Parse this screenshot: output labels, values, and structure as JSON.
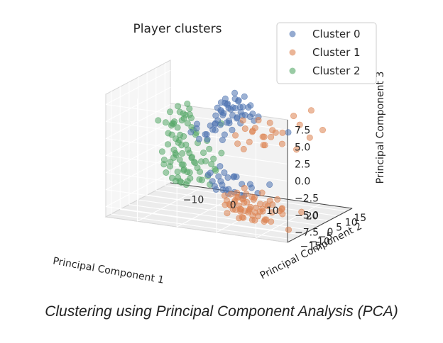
{
  "caption": "Clustering using Principal Component Analysis (PCA)",
  "chart_data": {
    "type": "scatter",
    "projection": "3d",
    "title": "Player clusters",
    "xlabel": "Principal Component 1",
    "ylabel": "Principal Component 2",
    "zlabel": "Principal Component 3",
    "legend_position": "top-right",
    "grid": true,
    "xlim": [
      -18,
      28
    ],
    "ylim": [
      -18,
      18
    ],
    "zlim": [
      -9,
      9
    ],
    "x_ticks": [
      "−10",
      "0",
      "10",
      "20"
    ],
    "y_ticks": [
      "−15",
      "−10",
      "−5",
      "0",
      "5",
      "10",
      "15"
    ],
    "z_ticks": [
      "−7.5",
      "−5.0",
      "−2.5",
      "0.0",
      "2.5",
      "5.0",
      "7.5"
    ],
    "series": [
      {
        "name": "Cluster 0",
        "color": "#4c72b0",
        "points": [
          [
            4,
            -2,
            6
          ],
          [
            5,
            -1,
            7
          ],
          [
            6,
            0,
            6.5
          ],
          [
            3,
            -3,
            5.5
          ],
          [
            7,
            1,
            7.5
          ],
          [
            6,
            -2,
            4.5
          ],
          [
            8,
            0,
            6
          ],
          [
            5,
            2,
            5
          ],
          [
            4,
            0,
            7
          ],
          [
            7,
            -1,
            8
          ],
          [
            9,
            2,
            6.5
          ],
          [
            3,
            1,
            5
          ],
          [
            6,
            3,
            7
          ],
          [
            5,
            -3,
            6
          ],
          [
            8,
            -2,
            5.5
          ],
          [
            10,
            1,
            7
          ],
          [
            2,
            -1,
            4
          ],
          [
            4,
            2,
            6
          ],
          [
            7,
            3,
            5
          ],
          [
            6,
            1,
            8.5
          ],
          [
            5,
            0,
            4.5
          ],
          [
            9,
            -1,
            7
          ],
          [
            3,
            -2,
            6.5
          ],
          [
            8,
            2,
            8
          ],
          [
            11,
            0,
            6
          ],
          [
            4,
            -4,
            5
          ],
          [
            6,
            -3,
            7.5
          ],
          [
            7,
            2,
            4
          ],
          [
            5,
            1,
            6
          ],
          [
            2,
            2,
            5.5
          ],
          [
            9,
            3,
            5
          ],
          [
            10,
            -2,
            6
          ],
          [
            12,
            1,
            5.5
          ],
          [
            3,
            0,
            7
          ],
          [
            6,
            4,
            6
          ],
          [
            8,
            -3,
            7
          ],
          [
            4,
            1,
            4
          ],
          [
            7,
            0,
            5
          ],
          [
            5,
            -2,
            8
          ],
          [
            10,
            3,
            4.5
          ],
          [
            -5,
            4,
            2
          ],
          [
            -2,
            3,
            1.5
          ],
          [
            0,
            2,
            2.5
          ],
          [
            -3,
            1,
            1
          ],
          [
            1,
            4,
            3
          ],
          [
            -1,
            0,
            2
          ],
          [
            2,
            3,
            1
          ],
          [
            -4,
            2,
            3
          ],
          [
            0,
            -1,
            1.5
          ],
          [
            3,
            2,
            2
          ],
          [
            -2,
            5,
            2.5
          ],
          [
            1,
            1,
            3.5
          ],
          [
            -6,
            3,
            1.5
          ],
          [
            4,
            4,
            2.5
          ],
          [
            2,
            -1,
            3
          ],
          [
            6,
            -6,
            -4
          ],
          [
            7,
            -5,
            -3
          ],
          [
            8,
            -7,
            -5
          ],
          [
            5,
            -8,
            -4
          ],
          [
            9,
            -6,
            -2.5
          ],
          [
            4,
            -7,
            -3.5
          ],
          [
            10,
            -8,
            -4.5
          ],
          [
            7,
            -9,
            -3
          ],
          [
            6,
            -4,
            -5
          ],
          [
            11,
            -6,
            -3.5
          ],
          [
            3,
            -6,
            -2.5
          ],
          [
            8,
            -4,
            -3
          ],
          [
            12,
            -7,
            -5
          ],
          [
            5,
            -5,
            -1.5
          ],
          [
            9,
            -9,
            -4
          ],
          [
            4,
            -5,
            -5
          ],
          [
            13,
            -5,
            -4
          ],
          [
            7,
            -7,
            -2
          ],
          [
            10,
            -4,
            -5.5
          ],
          [
            6,
            -8,
            -2.5
          ],
          [
            14,
            -8,
            -3
          ],
          [
            2,
            -5,
            -3
          ],
          [
            11,
            -9,
            -2
          ],
          [
            8,
            -10,
            -4
          ],
          [
            15,
            -6,
            -4.5
          ],
          [
            18,
            -6,
            -3
          ],
          [
            20,
            0,
            4
          ]
        ]
      },
      {
        "name": "Cluster 1",
        "color": "#dd8452",
        "points": [
          [
            10,
            -8,
            -6
          ],
          [
            12,
            -9,
            -7
          ],
          [
            14,
            -7,
            -5
          ],
          [
            11,
            -11,
            -6.5
          ],
          [
            13,
            -6,
            -7
          ],
          [
            15,
            -10,
            -6
          ],
          [
            9,
            -10,
            -5.5
          ],
          [
            16,
            -8,
            -7.5
          ],
          [
            12,
            -12,
            -5
          ],
          [
            14,
            -11,
            -6.5
          ],
          [
            17,
            -9,
            -5.5
          ],
          [
            10,
            -12,
            -7
          ],
          [
            13,
            -8,
            -4.5
          ],
          [
            15,
            -7,
            -6.5
          ],
          [
            18,
            -10,
            -6
          ],
          [
            11,
            -9,
            -5
          ],
          [
            16,
            -11,
            -7
          ],
          [
            12,
            -7,
            -6
          ],
          [
            19,
            -8,
            -5
          ],
          [
            14,
            -13,
            -6
          ],
          [
            9,
            -8,
            -6.5
          ],
          [
            17,
            -12,
            -7.5
          ],
          [
            13,
            -10,
            -5
          ],
          [
            20,
            -9,
            -6.5
          ],
          [
            11,
            -13,
            -5.5
          ],
          [
            15,
            -9,
            -8
          ],
          [
            18,
            -7,
            -6
          ],
          [
            12,
            -11,
            -4
          ],
          [
            16,
            -13,
            -6
          ],
          [
            14,
            -9,
            -7
          ],
          [
            21,
            -11,
            -5
          ],
          [
            10,
            -10,
            -4.5
          ],
          [
            17,
            -6,
            -6
          ],
          [
            13,
            -12,
            -7.5
          ],
          [
            19,
            -12,
            -6
          ],
          [
            15,
            -12,
            -5
          ],
          [
            8,
            -9,
            -5
          ],
          [
            22,
            -8,
            -6
          ],
          [
            12,
            -8,
            -8
          ],
          [
            16,
            -10,
            -4.5
          ],
          [
            14,
            -6,
            -5.5
          ],
          [
            20,
            -13,
            -7
          ],
          [
            11,
            -7,
            -7
          ],
          [
            18,
            -9,
            -8
          ],
          [
            13,
            -14,
            -6
          ],
          [
            23,
            -10,
            -5.5
          ],
          [
            9,
            -11,
            -6
          ],
          [
            17,
            -8,
            -4
          ],
          [
            15,
            -14,
            -7
          ],
          [
            21,
            -7,
            -6.5
          ],
          [
            12,
            -10,
            -6
          ],
          [
            19,
            -10,
            -7.5
          ],
          [
            14,
            -12,
            -4.5
          ],
          [
            16,
            -7,
            -7
          ],
          [
            10,
            -6,
            -5.5
          ],
          [
            18,
            -14,
            -6
          ],
          [
            24,
            -12,
            -6
          ],
          [
            13,
            -9,
            -3.5
          ],
          [
            20,
            -6,
            -5
          ],
          [
            22,
            -14,
            -7
          ],
          [
            8,
            -3,
            3
          ],
          [
            10,
            -2,
            4
          ],
          [
            12,
            -4,
            2.5
          ],
          [
            9,
            -1,
            5
          ],
          [
            11,
            0,
            3.5
          ],
          [
            13,
            -3,
            4.5
          ],
          [
            14,
            -1,
            3
          ],
          [
            12,
            1,
            5
          ],
          [
            15,
            -2,
            2
          ],
          [
            10,
            2,
            3
          ],
          [
            16,
            0,
            4
          ],
          [
            11,
            -5,
            1.5
          ],
          [
            13,
            2,
            2.5
          ],
          [
            17,
            -3,
            3.5
          ],
          [
            14,
            3,
            4.5
          ],
          [
            18,
            1,
            2
          ],
          [
            9,
            -4,
            2
          ],
          [
            15,
            4,
            3
          ],
          [
            19,
            -1,
            4
          ],
          [
            16,
            -5,
            2.5
          ],
          [
            22,
            2,
            5
          ],
          [
            24,
            4,
            7
          ],
          [
            26,
            6,
            4
          ],
          [
            23,
            -2,
            2
          ],
          [
            25,
            1,
            3.5
          ],
          [
            20,
            3,
            6
          ],
          [
            27,
            -8,
            -6
          ],
          [
            26,
            -13,
            -8
          ]
        ]
      },
      {
        "name": "Cluster 2",
        "color": "#55a868",
        "points": [
          [
            -12,
            10,
            3
          ],
          [
            -11,
            9,
            2
          ],
          [
            -10,
            11,
            3.5
          ],
          [
            -13,
            8,
            1.5
          ],
          [
            -12,
            12,
            2.5
          ],
          [
            -9,
            10,
            1
          ],
          [
            -14,
            9,
            3
          ],
          [
            -11,
            12,
            4
          ],
          [
            -10,
            8,
            2.5
          ],
          [
            -13,
            11,
            0.5
          ],
          [
            -12,
            7,
            2
          ],
          [
            -11,
            10,
            -0.5
          ],
          [
            -9,
            9,
            3
          ],
          [
            -14,
            11,
            1
          ],
          [
            -10,
            12,
            2
          ],
          [
            -12,
            9,
            4
          ],
          [
            -13,
            10,
            -1
          ],
          [
            -11,
            8,
            0
          ],
          [
            -10,
            10,
            1.5
          ],
          [
            -12,
            11,
            -2
          ],
          [
            -14,
            10,
            -0.5
          ],
          [
            -9,
            11,
            0.5
          ],
          [
            -13,
            9,
            -2.5
          ],
          [
            -11,
            11,
            2.5
          ],
          [
            -10,
            9,
            -1.5
          ],
          [
            -12,
            8,
            -3
          ],
          [
            -14,
            8,
            0
          ],
          [
            -11,
            7,
            -1
          ],
          [
            -9,
            8,
            -2
          ],
          [
            -13,
            12,
            -1.5
          ],
          [
            -12,
            10,
            -4
          ],
          [
            -10,
            11,
            -3
          ],
          [
            -14,
            12,
            -3.5
          ],
          [
            -11,
            9,
            -4.5
          ],
          [
            -9,
            10,
            -3.5
          ],
          [
            -13,
            7,
            -4
          ],
          [
            -12,
            12,
            -5
          ],
          [
            -10,
            7,
            -2.5
          ],
          [
            -14,
            9,
            -5
          ],
          [
            -11,
            10,
            -5.5
          ],
          [
            -9,
            12,
            -4.5
          ],
          [
            -13,
            11,
            -6
          ],
          [
            -12,
            9,
            -6.5
          ],
          [
            -10,
            8,
            -5
          ],
          [
            -14,
            11,
            -4
          ],
          [
            -11,
            12,
            -6
          ],
          [
            -9,
            9,
            -5.5
          ],
          [
            -13,
            8,
            -6.5
          ],
          [
            -8,
            10,
            0
          ],
          [
            -8,
            8,
            -3
          ],
          [
            -8,
            11,
            -5
          ],
          [
            -15,
            10,
            -2
          ],
          [
            -15,
            8,
            -4
          ],
          [
            -15,
            12,
            0.5
          ],
          [
            -7,
            9,
            -1
          ],
          [
            -7,
            11,
            -4
          ],
          [
            -16,
            9,
            -3
          ],
          [
            -16,
            11,
            1
          ],
          [
            -6,
            10,
            -2.5
          ],
          [
            -6,
            8,
            -5
          ],
          [
            -5,
            9,
            -3.5
          ],
          [
            -5,
            7,
            -6
          ],
          [
            -4,
            10,
            -4
          ],
          [
            -4,
            8,
            -5.5
          ],
          [
            -3,
            9,
            -3
          ],
          [
            -3,
            7,
            -6.5
          ],
          [
            -6,
            12,
            -1
          ],
          [
            -5,
            11,
            -2
          ],
          [
            -7,
            7,
            -3.5
          ],
          [
            -4,
            12,
            -5
          ],
          [
            -2,
            8,
            -4.5
          ],
          [
            -8,
            7,
            -6
          ],
          [
            -10,
            10,
            -7
          ],
          [
            -12,
            11,
            -7.5
          ],
          [
            -9,
            7,
            -7
          ],
          [
            -11,
            8,
            -6.8
          ],
          [
            -13,
            10,
            -7.2
          ],
          [
            -7,
            10,
            -6.5
          ],
          [
            -15,
            9,
            -6
          ],
          [
            -16,
            10,
            -5
          ],
          [
            -17,
            9,
            1.5
          ],
          [
            -2,
            11,
            2
          ],
          [
            -6,
            6,
            1
          ],
          [
            -1,
            9,
            -2
          ]
        ]
      }
    ]
  }
}
